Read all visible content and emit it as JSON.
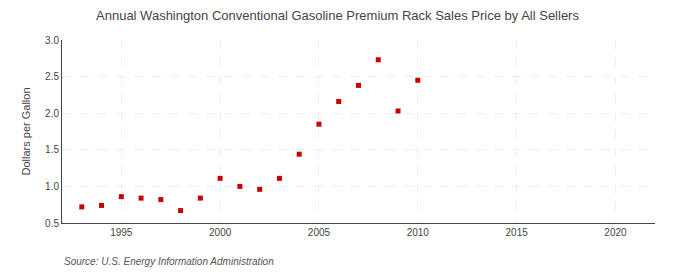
{
  "chart_data": {
    "type": "scatter",
    "title": "Annual Washington Conventional Gasoline Premium Rack Sales Price by All Sellers",
    "ylabel": "Dollars per Gallon",
    "source": "Source: U.S. Energy Information Administration",
    "x": [
      1993,
      1994,
      1995,
      1996,
      1997,
      1998,
      1999,
      2000,
      2001,
      2002,
      2003,
      2004,
      2005,
      2006,
      2007,
      2008,
      2009,
      2010
    ],
    "values": [
      0.72,
      0.74,
      0.86,
      0.84,
      0.82,
      0.67,
      0.84,
      1.11,
      1.0,
      0.96,
      1.11,
      1.44,
      1.85,
      2.16,
      2.38,
      2.73,
      2.03,
      2.45
    ],
    "color": "#cc0000",
    "marker": "square",
    "xlim": [
      1992,
      2022
    ],
    "ylim": [
      0.5,
      3.0
    ],
    "xticks": [
      1995,
      2000,
      2005,
      2010,
      2015,
      2020
    ],
    "yticks": [
      0.5,
      {
        "value": 1.0,
        "label": "1.0"
      },
      1.5,
      {
        "value": 2.0,
        "label": "2.0"
      },
      2.5,
      {
        "value": 3.0,
        "label": "3.0"
      }
    ],
    "grid": true
  }
}
